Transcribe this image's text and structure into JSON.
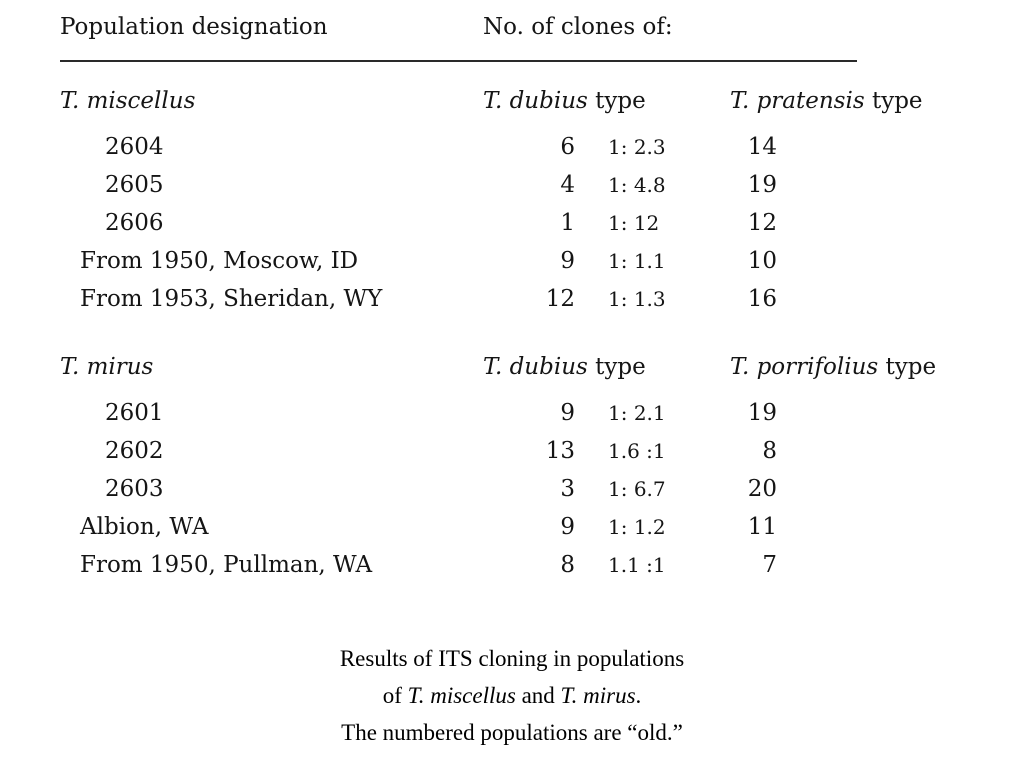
{
  "header": {
    "col1": "Population designation",
    "col2": "No. of clones of:"
  },
  "sections": [
    {
      "species": "T. miscellus",
      "colA": {
        "italic": "T. dubius",
        "rest": " type"
      },
      "colB": {
        "italic": "T. pratensis",
        "rest": " type"
      },
      "rows": [
        {
          "name": "2604",
          "a": "6",
          "ratio": "1: 2.3",
          "b": "14"
        },
        {
          "name": "2605",
          "a": "4",
          "ratio": "1: 4.8",
          "b": "19"
        },
        {
          "name": "2606",
          "a": "1",
          "ratio": "1: 12",
          "b": "12"
        },
        {
          "name": "From 1950, Moscow, ID",
          "a": "9",
          "ratio": "1: 1.1",
          "b": "10"
        },
        {
          "name": "From 1953, Sheridan, WY",
          "a": "12",
          "ratio": "1: 1.3",
          "b": "16"
        }
      ]
    },
    {
      "species": "T. mirus",
      "colA": {
        "italic": "T. dubius",
        "rest": " type"
      },
      "colB": {
        "italic": "T. porrifolius",
        "rest": " type"
      },
      "rows": [
        {
          "name": "2601",
          "a": "9",
          "ratio": "1: 2.1",
          "b": "19"
        },
        {
          "name": "2602",
          "a": "13",
          "ratio": "1.6 :1",
          "b": "8"
        },
        {
          "name": "2603",
          "a": "3",
          "ratio": "1: 6.7",
          "b": "20"
        },
        {
          "name": "Albion, WA",
          "a": "9",
          "ratio": "1: 1.2",
          "b": "11"
        },
        {
          "name": "From 1950, Pullman, WA",
          "a": "8",
          "ratio": "1.1 :1",
          "b": "7"
        }
      ]
    }
  ],
  "caption": {
    "line1": "Results of ITS cloning in populations",
    "line2": {
      "pre": "of ",
      "sp1": "T. miscellus",
      "mid": " and ",
      "sp2": "T. mirus",
      "end": "."
    },
    "line3": "The numbered populations are “old.”"
  }
}
